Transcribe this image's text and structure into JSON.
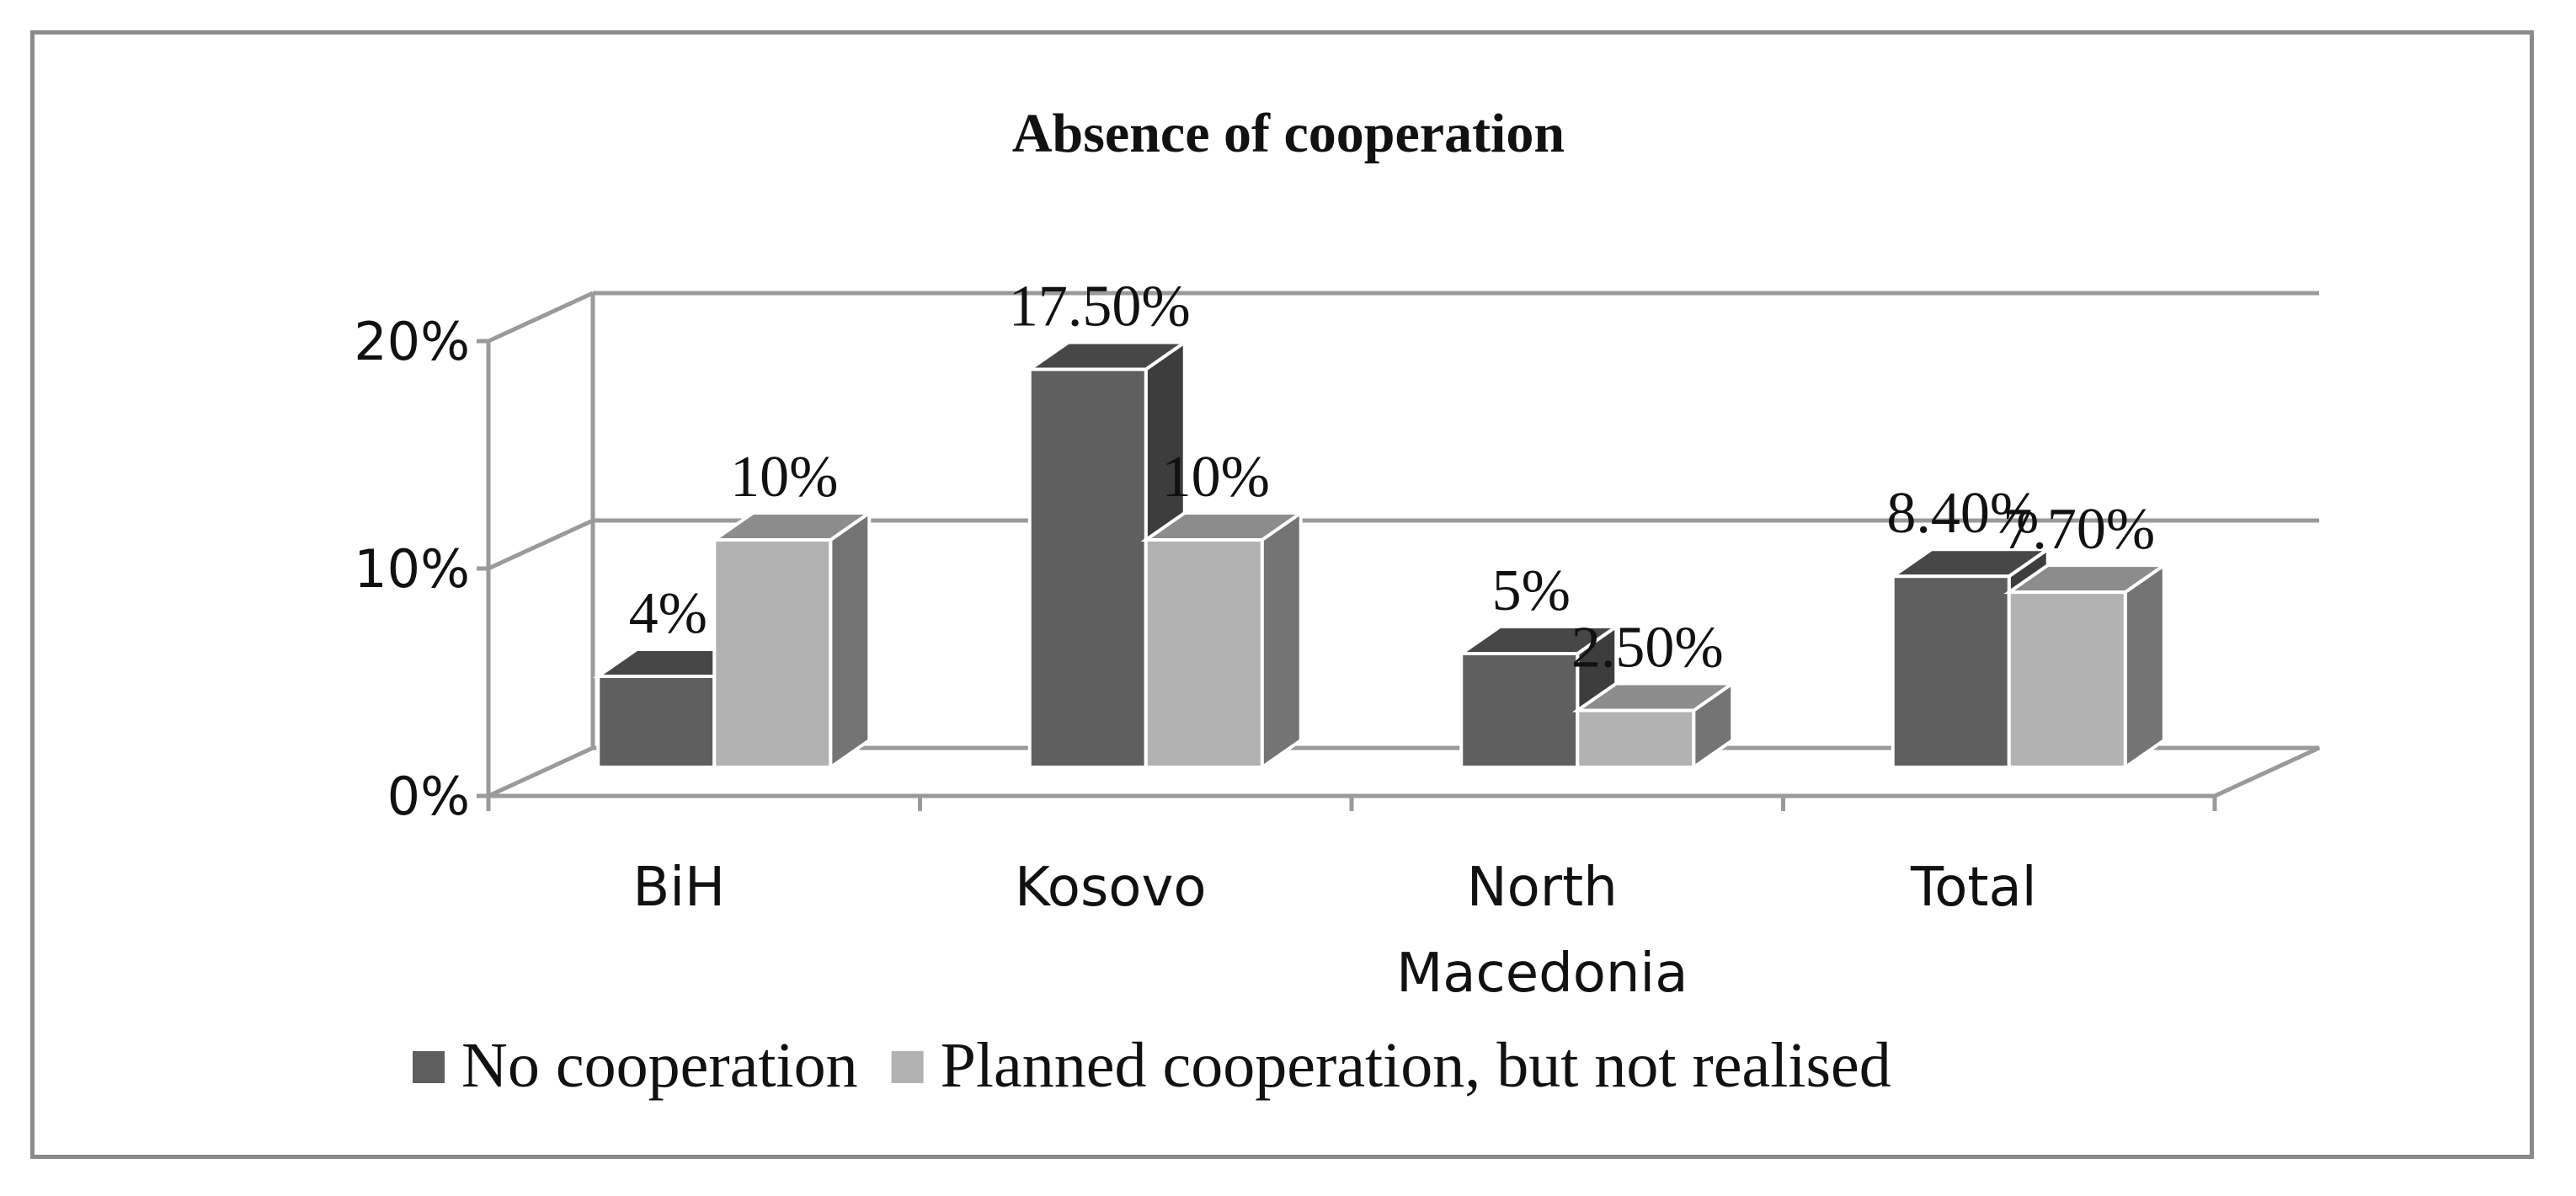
{
  "chart_data": {
    "type": "bar",
    "title": "Absence of cooperation",
    "xlabel": "",
    "ylabel": "",
    "ylim": [
      0,
      20
    ],
    "yticks": [
      "0%",
      "10%",
      "20%"
    ],
    "categories": [
      [
        "BiH"
      ],
      [
        "Kosovo"
      ],
      [
        "North",
        "Macedonia"
      ],
      [
        "Total"
      ]
    ],
    "series": [
      {
        "name": "No cooperation",
        "values": [
          4,
          17.5,
          5,
          8.4
        ],
        "labels": [
          "4%",
          "17.50%",
          "5%",
          "8.40%"
        ],
        "color": "#5f5f5f"
      },
      {
        "name": "Planned cooperation, but not realised",
        "values": [
          10,
          10,
          2.5,
          7.7
        ],
        "labels": [
          "10%",
          "10%",
          "2.50%",
          "7.70%"
        ],
        "color": "#b2b2b2"
      }
    ],
    "grid": true,
    "legend": "bottom",
    "three_d": true
  }
}
